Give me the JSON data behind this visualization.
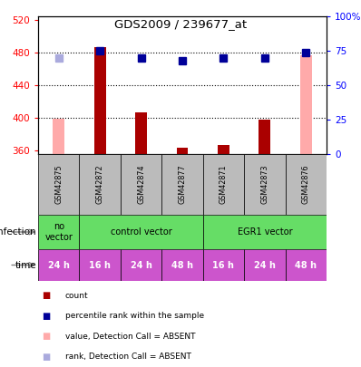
{
  "title": "GDS2009 / 239677_at",
  "samples": [
    "GSM42875",
    "GSM42872",
    "GSM42874",
    "GSM42877",
    "GSM42871",
    "GSM42873",
    "GSM42876"
  ],
  "bar_values": [
    399,
    487,
    407,
    363,
    366,
    397,
    477
  ],
  "bar_absent": [
    true,
    false,
    false,
    false,
    false,
    false,
    true
  ],
  "rank_values": [
    70,
    75,
    70,
    68,
    70,
    70,
    74
  ],
  "rank_absent": [
    true,
    false,
    false,
    false,
    false,
    false,
    false
  ],
  "ylim_left": [
    355,
    525
  ],
  "ylim_right": [
    0,
    100
  ],
  "yticks_left": [
    360,
    400,
    440,
    480,
    520
  ],
  "yticks_right": [
    0,
    25,
    50,
    75,
    100
  ],
  "ytick_labels_right": [
    "0",
    "25",
    "50",
    "75",
    "100%"
  ],
  "time_labels": [
    "24 h",
    "16 h",
    "24 h",
    "48 h",
    "16 h",
    "24 h",
    "48 h"
  ],
  "time_color": "#cc55cc",
  "bar_color_present": "#aa0000",
  "bar_color_absent": "#ffaaaa",
  "rank_color_present": "#000099",
  "rank_color_absent": "#aaaadd",
  "sample_bg_color": "#bbbbbb",
  "green_color": "#66dd66",
  "legend_items": [
    [
      "#aa0000",
      "count"
    ],
    [
      "#000099",
      "percentile rank within the sample"
    ],
    [
      "#ffaaaa",
      "value, Detection Call = ABSENT"
    ],
    [
      "#aaaadd",
      "rank, Detection Call = ABSENT"
    ]
  ]
}
